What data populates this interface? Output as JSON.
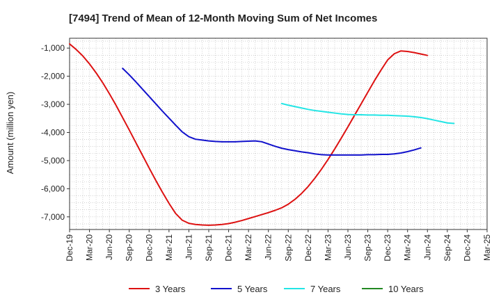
{
  "chart_data": {
    "type": "line",
    "title": "[7494]  Trend of Mean of 12-Month Moving Sum of Net Incomes",
    "xlabel": "",
    "ylabel": "Amount (million yen)",
    "ylim": [
      -7450,
      -650
    ],
    "y_ticks": [
      -1000,
      -2000,
      -3000,
      -4000,
      -5000,
      -6000,
      -7000
    ],
    "y_tick_labels": [
      "-1,000",
      "-2,000",
      "-3,000",
      "-4,000",
      "-5,000",
      "-6,000",
      "-7,000"
    ],
    "x_ticks": [
      "Dec-19",
      "Mar-20",
      "Jun-20",
      "Sep-20",
      "Dec-20",
      "Mar-21",
      "Jun-21",
      "Sep-21",
      "Dec-21",
      "Mar-22",
      "Jun-22",
      "Sep-22",
      "Dec-22",
      "Mar-23",
      "Jun-23",
      "Sep-23",
      "Dec-23",
      "Mar-24",
      "Jun-24",
      "Sep-24",
      "Dec-24",
      "Mar-25"
    ],
    "grid": true,
    "legend_position": "bottom",
    "series": [
      {
        "name": "3 Years",
        "color": "#dd1111",
        "start": "Dec-19",
        "values": [
          -850,
          -1050,
          -1280,
          -1560,
          -1880,
          -2230,
          -2620,
          -3030,
          -3470,
          -3910,
          -4360,
          -4810,
          -5260,
          -5700,
          -6120,
          -6520,
          -6880,
          -7120,
          -7230,
          -7270,
          -7290,
          -7300,
          -7290,
          -7270,
          -7240,
          -7190,
          -7130,
          -7060,
          -6990,
          -6920,
          -6850,
          -6770,
          -6680,
          -6550,
          -6380,
          -6170,
          -5920,
          -5630,
          -5310,
          -4960,
          -4590,
          -4200,
          -3800,
          -3390,
          -2980,
          -2570,
          -2160,
          -1780,
          -1420,
          -1200,
          -1100,
          -1120,
          -1160,
          -1210,
          -1260
        ]
      },
      {
        "name": "5 Years",
        "color": "#1111cc",
        "start": "Aug-20",
        "values": [
          -1720,
          -1950,
          -2200,
          -2460,
          -2720,
          -2980,
          -3240,
          -3490,
          -3740,
          -3980,
          -4150,
          -4240,
          -4270,
          -4300,
          -4320,
          -4330,
          -4330,
          -4330,
          -4320,
          -4310,
          -4300,
          -4330,
          -4410,
          -4490,
          -4560,
          -4610,
          -4650,
          -4690,
          -4720,
          -4760,
          -4790,
          -4800,
          -4800,
          -4800,
          -4800,
          -4800,
          -4800,
          -4790,
          -4790,
          -4780,
          -4780,
          -4760,
          -4730,
          -4680,
          -4620,
          -4550
        ]
      },
      {
        "name": "7 Years",
        "color": "#22e5e5",
        "start": "Aug-22",
        "values": [
          -2970,
          -3030,
          -3080,
          -3130,
          -3180,
          -3220,
          -3250,
          -3280,
          -3310,
          -3340,
          -3360,
          -3370,
          -3370,
          -3380,
          -3380,
          -3390,
          -3390,
          -3400,
          -3410,
          -3420,
          -3440,
          -3470,
          -3510,
          -3560,
          -3610,
          -3660,
          -3680
        ]
      },
      {
        "name": "10 Years",
        "color": "#228822",
        "start": "",
        "values": []
      }
    ]
  }
}
